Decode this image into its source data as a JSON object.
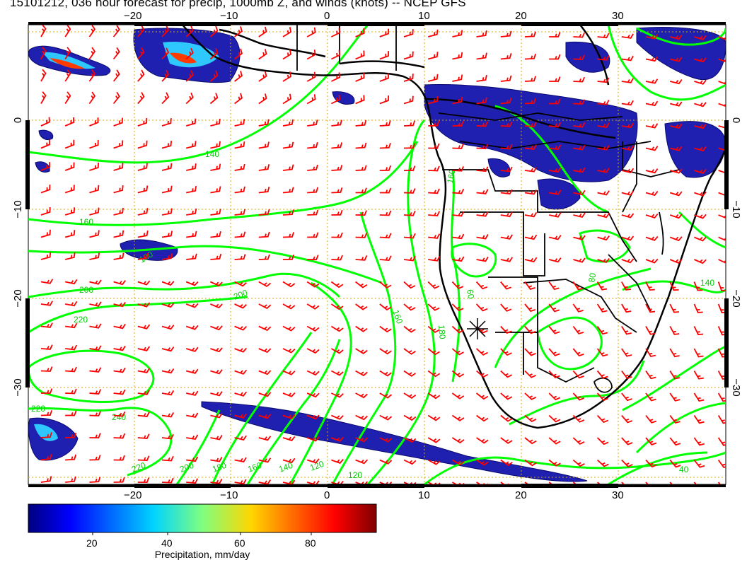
{
  "title": "15101212, 036 hour forecast for precip, 1000mb Z, and winds (knots) -- NCEP GFS",
  "map": {
    "lon_ticks": [
      "−20",
      "−10",
      "0",
      "10",
      "20",
      "30"
    ],
    "lat_ticks": [
      "0",
      "−10",
      "−20",
      "−30"
    ],
    "colors": {
      "barbs": "#ff0000",
      "contours": "#00ff00",
      "coast": "#000000",
      "gridlines": "#d4a800",
      "precip": "#1a1aa8"
    },
    "contour_labels": [
      "140",
      "160",
      "160",
      "180",
      "200",
      "200",
      "220",
      "240",
      "200",
      "180",
      "160",
      "140",
      "120",
      "120",
      "160",
      "180",
      "60",
      "80",
      "40",
      "140",
      "220",
      "220"
    ]
  },
  "colorbar": {
    "title": "Precipitation, mm/day",
    "ticks": [
      "20",
      "40",
      "60",
      "80"
    ]
  }
}
